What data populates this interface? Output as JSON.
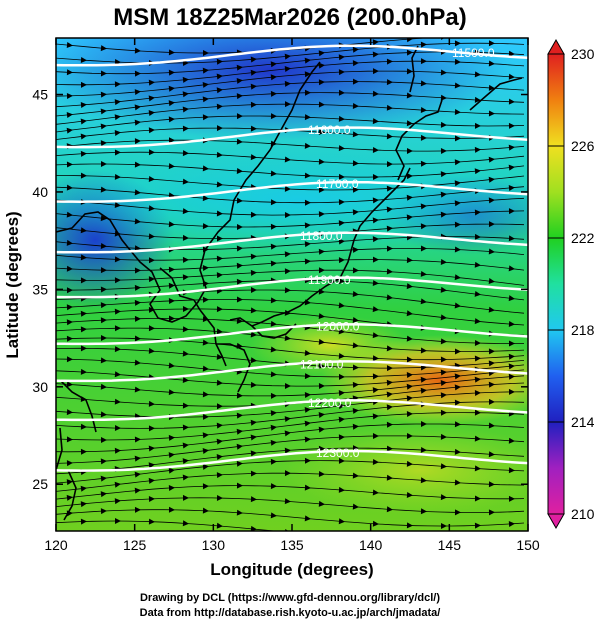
{
  "title": "MSM 18Z25Mar2026 (200.0hPa)",
  "axes": {
    "xlabel": "Longitude (degrees)",
    "ylabel": "Latitude  (degrees)",
    "x_ticks": [
      "120",
      "125",
      "130",
      "135",
      "140",
      "145",
      "150"
    ],
    "y_ticks": [
      "25",
      "30",
      "35",
      "40",
      "45"
    ]
  },
  "colorbar": {
    "ticks": [
      "210",
      "214",
      "218",
      "222",
      "226",
      "230"
    ],
    "min": 210,
    "max": 230
  },
  "contours": [
    {
      "label": "11500.0",
      "lat": 46.8
    },
    {
      "label": "11600.0",
      "lat": 42.6
    },
    {
      "label": "11700.0",
      "lat": 39.8
    },
    {
      "label": "11800.0",
      "lat": 37.2
    },
    {
      "label": "11900.0",
      "lat": 34.9
    },
    {
      "label": "12000.0",
      "lat": 32.5
    },
    {
      "label": "12100.0",
      "lat": 30.6
    },
    {
      "label": "12200.0",
      "lat": 28.6
    },
    {
      "label": "12300.0",
      "lat": 26.0
    }
  ],
  "credits": {
    "line1": "Drawing by DCL (https://www.gfd-dennou.org/library/dcl/)",
    "line2": "Data from http://database.rish.kyoto-u.ac.jp/arch/jmadata/"
  },
  "colors": {
    "field_low": "#2040d0",
    "field_mid": "#20d020",
    "field_high": "#f07000",
    "contour": "#ffffff",
    "streamline": "#000000"
  }
}
